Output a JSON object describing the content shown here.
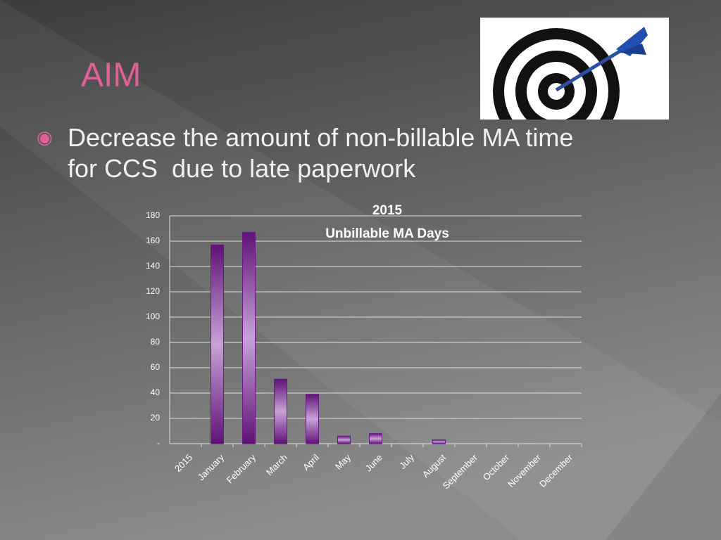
{
  "slide_title": "AIM",
  "bullets": [
    "Decrease the amount of non-billable MA time for CCS  due to late paperwork"
  ],
  "chart_data": {
    "type": "bar",
    "title": "2015",
    "subtitle": "Unbillable MA Days",
    "categories": [
      "2015",
      "January",
      "February",
      "March",
      "April",
      "May",
      "June",
      "July",
      "August",
      "September",
      "October",
      "November",
      "December"
    ],
    "values": [
      null,
      157,
      167,
      51,
      39,
      6,
      8,
      0,
      3,
      0,
      0,
      0,
      0
    ],
    "ylim": [
      0,
      180
    ],
    "yticks": [
      {
        "value": 0,
        "label": "-"
      },
      20,
      40,
      60,
      80,
      100,
      120,
      140,
      160,
      180
    ],
    "grid": true,
    "color": "#6a1a85"
  }
}
